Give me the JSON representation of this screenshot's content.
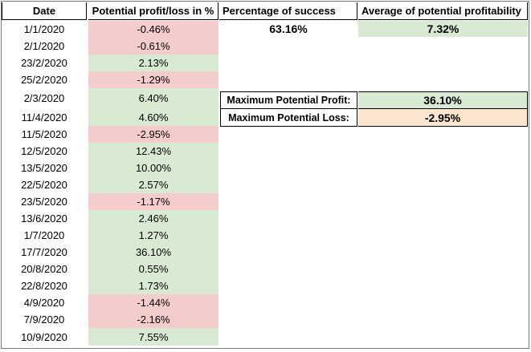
{
  "headers": {
    "date": "Date",
    "pnl": "Potential profit/loss in %",
    "success": "Percentage of success",
    "avg": "Average of potential profitability"
  },
  "rows": [
    {
      "date": "1/1/2020",
      "value": "-0.46%",
      "sign": "neg"
    },
    {
      "date": "2/1/2020",
      "value": "-0.61%",
      "sign": "neg"
    },
    {
      "date": "23/2/2020",
      "value": "2.13%",
      "sign": "pos"
    },
    {
      "date": "25/2/2020",
      "value": "-1.29%",
      "sign": "neg"
    },
    {
      "date": "2/3/2020",
      "value": "6.40%",
      "sign": "pos"
    },
    {
      "date": "11/4/2020",
      "value": "4.60%",
      "sign": "pos"
    },
    {
      "date": "11/5/2020",
      "value": "-2.95%",
      "sign": "neg"
    },
    {
      "date": "12/5/2020",
      "value": "12.43%",
      "sign": "pos"
    },
    {
      "date": "13/5/2020",
      "value": "10.00%",
      "sign": "pos"
    },
    {
      "date": "22/5/2020",
      "value": "2.57%",
      "sign": "pos"
    },
    {
      "date": "23/5/2020",
      "value": "-1.17%",
      "sign": "neg"
    },
    {
      "date": "13/6/2020",
      "value": "2.46%",
      "sign": "pos"
    },
    {
      "date": "1/7/2020",
      "value": "1.27%",
      "sign": "pos"
    },
    {
      "date": "17/7/2020",
      "value": "36.10%",
      "sign": "pos"
    },
    {
      "date": "20/8/2020",
      "value": "0.55%",
      "sign": "pos"
    },
    {
      "date": "22/8/2020",
      "value": "1.73%",
      "sign": "pos"
    },
    {
      "date": "4/9/2020",
      "value": "-1.44%",
      "sign": "neg"
    },
    {
      "date": "7/9/2020",
      "value": "-2.16%",
      "sign": "neg"
    },
    {
      "date": "10/9/2020",
      "value": "7.55%",
      "sign": "pos"
    }
  ],
  "stats": {
    "success_value": "63.16%",
    "avg_value": "7.32%",
    "max_profit_label": "Maximum Potential Profit:",
    "max_profit_value": "36.10%",
    "max_loss_label": "Maximum Potential Loss:",
    "max_loss_value": "-2.95%"
  },
  "colors": {
    "positive_fill": "#d9ead3",
    "negative_fill": "#f4cccc",
    "loss_highlight": "#fce5cd"
  }
}
